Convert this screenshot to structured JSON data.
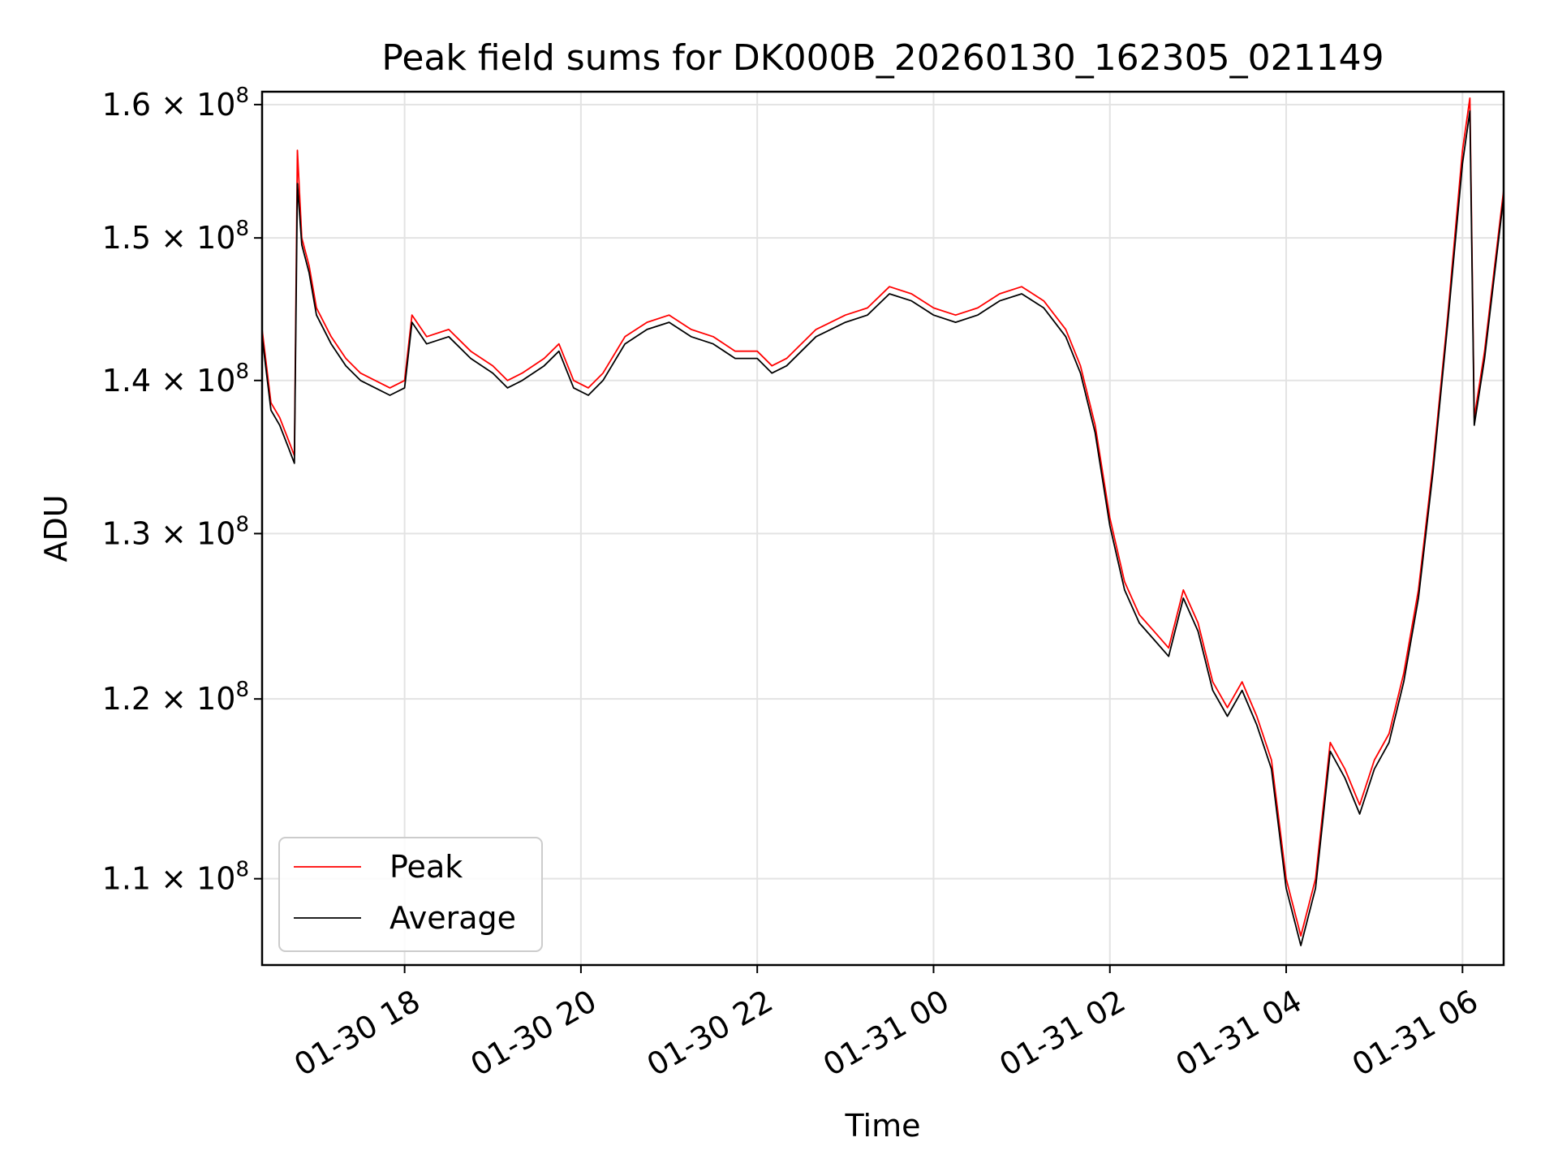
{
  "chart_data": {
    "type": "line",
    "title": "Peak field sums for DK000B_20260130_162305_021149",
    "xlabel": "Time",
    "ylabel": "ADU",
    "x_ticks": [
      "01-30 18",
      "01-30 20",
      "01-30 22",
      "01-31 00",
      "01-31 02",
      "01-31 04",
      "01-31 06"
    ],
    "y_ticks": [
      {
        "value": 110000000,
        "mantissa": "1.1",
        "base": "10",
        "exp": "8"
      },
      {
        "value": 120000000,
        "mantissa": "1.2",
        "base": "10",
        "exp": "8"
      },
      {
        "value": 130000000,
        "mantissa": "1.3",
        "base": "10",
        "exp": "8"
      },
      {
        "value": 140000000,
        "mantissa": "1.4",
        "base": "10",
        "exp": "8"
      },
      {
        "value": 150000000,
        "mantissa": "1.5",
        "base": "10",
        "exp": "8"
      },
      {
        "value": 160000000,
        "mantissa": "1.6",
        "base": "10",
        "exp": "8"
      }
    ],
    "x_range": [
      "2026-01-30 16:23",
      "2026-01-31 06:28"
    ],
    "ylim": [
      105500000,
      161000000
    ],
    "y_scale": "log",
    "grid": true,
    "legend_position": "lower-left",
    "series": [
      {
        "name": "Peak",
        "color": "#ff0000",
        "points": [
          [
            "2026-01-30 16:23",
            143500000
          ],
          [
            "2026-01-30 16:29",
            138500000
          ],
          [
            "2026-01-30 16:35",
            137500000
          ],
          [
            "2026-01-30 16:41",
            136000000
          ],
          [
            "2026-01-30 16:45",
            135000000
          ],
          [
            "2026-01-30 16:47",
            156500000
          ],
          [
            "2026-01-30 16:50",
            150000000
          ],
          [
            "2026-01-30 16:55",
            148000000
          ],
          [
            "2026-01-30 17:00",
            145000000
          ],
          [
            "2026-01-30 17:10",
            143000000
          ],
          [
            "2026-01-30 17:20",
            141500000
          ],
          [
            "2026-01-30 17:30",
            140500000
          ],
          [
            "2026-01-30 17:40",
            140000000
          ],
          [
            "2026-01-30 17:50",
            139500000
          ],
          [
            "2026-01-30 18:00",
            140000000
          ],
          [
            "2026-01-30 18:05",
            144500000
          ],
          [
            "2026-01-30 18:15",
            143000000
          ],
          [
            "2026-01-30 18:30",
            143500000
          ],
          [
            "2026-01-30 18:45",
            142000000
          ],
          [
            "2026-01-30 19:00",
            141000000
          ],
          [
            "2026-01-30 19:10",
            140000000
          ],
          [
            "2026-01-30 19:20",
            140500000
          ],
          [
            "2026-01-30 19:35",
            141500000
          ],
          [
            "2026-01-30 19:45",
            142500000
          ],
          [
            "2026-01-30 19:55",
            140000000
          ],
          [
            "2026-01-30 20:05",
            139500000
          ],
          [
            "2026-01-30 20:15",
            140500000
          ],
          [
            "2026-01-30 20:30",
            143000000
          ],
          [
            "2026-01-30 20:45",
            144000000
          ],
          [
            "2026-01-30 21:00",
            144500000
          ],
          [
            "2026-01-30 21:15",
            143500000
          ],
          [
            "2026-01-30 21:30",
            143000000
          ],
          [
            "2026-01-30 21:45",
            142000000
          ],
          [
            "2026-01-30 22:00",
            142000000
          ],
          [
            "2026-01-30 22:10",
            141000000
          ],
          [
            "2026-01-30 22:20",
            141500000
          ],
          [
            "2026-01-30 22:40",
            143500000
          ],
          [
            "2026-01-30 23:00",
            144500000
          ],
          [
            "2026-01-30 23:15",
            145000000
          ],
          [
            "2026-01-30 23:30",
            146500000
          ],
          [
            "2026-01-30 23:45",
            146000000
          ],
          [
            "2026-01-31 00:00",
            145000000
          ],
          [
            "2026-01-31 00:15",
            144500000
          ],
          [
            "2026-01-31 00:30",
            145000000
          ],
          [
            "2026-01-31 00:45",
            146000000
          ],
          [
            "2026-01-31 01:00",
            146500000
          ],
          [
            "2026-01-31 01:15",
            145500000
          ],
          [
            "2026-01-31 01:30",
            143500000
          ],
          [
            "2026-01-31 01:40",
            141000000
          ],
          [
            "2026-01-31 01:50",
            137000000
          ],
          [
            "2026-01-31 02:00",
            131000000
          ],
          [
            "2026-01-31 02:10",
            127000000
          ],
          [
            "2026-01-31 02:20",
            125000000
          ],
          [
            "2026-01-31 02:30",
            124000000
          ],
          [
            "2026-01-31 02:40",
            123000000
          ],
          [
            "2026-01-31 02:50",
            126500000
          ],
          [
            "2026-01-31 03:00",
            124500000
          ],
          [
            "2026-01-31 03:10",
            121000000
          ],
          [
            "2026-01-31 03:20",
            119500000
          ],
          [
            "2026-01-31 03:30",
            121000000
          ],
          [
            "2026-01-31 03:40",
            119000000
          ],
          [
            "2026-01-31 03:50",
            116500000
          ],
          [
            "2026-01-31 04:00",
            110000000
          ],
          [
            "2026-01-31 04:10",
            107000000
          ],
          [
            "2026-01-31 04:20",
            110000000
          ],
          [
            "2026-01-31 04:30",
            117500000
          ],
          [
            "2026-01-31 04:40",
            116000000
          ],
          [
            "2026-01-31 04:50",
            114000000
          ],
          [
            "2026-01-31 05:00",
            116500000
          ],
          [
            "2026-01-31 05:10",
            118000000
          ],
          [
            "2026-01-31 05:20",
            121500000
          ],
          [
            "2026-01-31 05:30",
            126500000
          ],
          [
            "2026-01-31 05:40",
            134500000
          ],
          [
            "2026-01-31 05:50",
            144500000
          ],
          [
            "2026-01-31 06:00",
            156500000
          ],
          [
            "2026-01-31 06:05",
            160500000
          ],
          [
            "2026-01-31 06:08",
            137500000
          ],
          [
            "2026-01-31 06:15",
            142000000
          ],
          [
            "2026-01-31 06:28",
            153500000
          ]
        ]
      },
      {
        "name": "Average",
        "color": "#000000",
        "points": [
          [
            "2026-01-30 16:23",
            143000000
          ],
          [
            "2026-01-30 16:29",
            138000000
          ],
          [
            "2026-01-30 16:35",
            137000000
          ],
          [
            "2026-01-30 16:41",
            135500000
          ],
          [
            "2026-01-30 16:45",
            134500000
          ],
          [
            "2026-01-30 16:47",
            154000000
          ],
          [
            "2026-01-30 16:50",
            149500000
          ],
          [
            "2026-01-30 16:55",
            147500000
          ],
          [
            "2026-01-30 17:00",
            144500000
          ],
          [
            "2026-01-30 17:10",
            142500000
          ],
          [
            "2026-01-30 17:20",
            141000000
          ],
          [
            "2026-01-30 17:30",
            140000000
          ],
          [
            "2026-01-30 17:40",
            139500000
          ],
          [
            "2026-01-30 17:50",
            139000000
          ],
          [
            "2026-01-30 18:00",
            139500000
          ],
          [
            "2026-01-30 18:05",
            144000000
          ],
          [
            "2026-01-30 18:15",
            142500000
          ],
          [
            "2026-01-30 18:30",
            143000000
          ],
          [
            "2026-01-30 18:45",
            141500000
          ],
          [
            "2026-01-30 19:00",
            140500000
          ],
          [
            "2026-01-30 19:10",
            139500000
          ],
          [
            "2026-01-30 19:20",
            140000000
          ],
          [
            "2026-01-30 19:35",
            141000000
          ],
          [
            "2026-01-30 19:45",
            142000000
          ],
          [
            "2026-01-30 19:55",
            139500000
          ],
          [
            "2026-01-30 20:05",
            139000000
          ],
          [
            "2026-01-30 20:15",
            140000000
          ],
          [
            "2026-01-30 20:30",
            142500000
          ],
          [
            "2026-01-30 20:45",
            143500000
          ],
          [
            "2026-01-30 21:00",
            144000000
          ],
          [
            "2026-01-30 21:15",
            143000000
          ],
          [
            "2026-01-30 21:30",
            142500000
          ],
          [
            "2026-01-30 21:45",
            141500000
          ],
          [
            "2026-01-30 22:00",
            141500000
          ],
          [
            "2026-01-30 22:10",
            140500000
          ],
          [
            "2026-01-30 22:20",
            141000000
          ],
          [
            "2026-01-30 22:40",
            143000000
          ],
          [
            "2026-01-30 23:00",
            144000000
          ],
          [
            "2026-01-30 23:15",
            144500000
          ],
          [
            "2026-01-30 23:30",
            146000000
          ],
          [
            "2026-01-30 23:45",
            145500000
          ],
          [
            "2026-01-31 00:00",
            144500000
          ],
          [
            "2026-01-31 00:15",
            144000000
          ],
          [
            "2026-01-31 00:30",
            144500000
          ],
          [
            "2026-01-31 00:45",
            145500000
          ],
          [
            "2026-01-31 01:00",
            146000000
          ],
          [
            "2026-01-31 01:15",
            145000000
          ],
          [
            "2026-01-31 01:30",
            143000000
          ],
          [
            "2026-01-31 01:40",
            140500000
          ],
          [
            "2026-01-31 01:50",
            136500000
          ],
          [
            "2026-01-31 02:00",
            130500000
          ],
          [
            "2026-01-31 02:10",
            126500000
          ],
          [
            "2026-01-31 02:20",
            124500000
          ],
          [
            "2026-01-31 02:30",
            123500000
          ],
          [
            "2026-01-31 02:40",
            122500000
          ],
          [
            "2026-01-31 02:50",
            126000000
          ],
          [
            "2026-01-31 03:00",
            124000000
          ],
          [
            "2026-01-31 03:10",
            120500000
          ],
          [
            "2026-01-31 03:20",
            119000000
          ],
          [
            "2026-01-31 03:30",
            120500000
          ],
          [
            "2026-01-31 03:40",
            118500000
          ],
          [
            "2026-01-31 03:50",
            116000000
          ],
          [
            "2026-01-31 04:00",
            109500000
          ],
          [
            "2026-01-31 04:10",
            106500000
          ],
          [
            "2026-01-31 04:20",
            109500000
          ],
          [
            "2026-01-31 04:30",
            117000000
          ],
          [
            "2026-01-31 04:40",
            115500000
          ],
          [
            "2026-01-31 04:50",
            113500000
          ],
          [
            "2026-01-31 05:00",
            116000000
          ],
          [
            "2026-01-31 05:10",
            117500000
          ],
          [
            "2026-01-31 05:20",
            121000000
          ],
          [
            "2026-01-31 05:30",
            126000000
          ],
          [
            "2026-01-31 05:40",
            134000000
          ],
          [
            "2026-01-31 05:50",
            144000000
          ],
          [
            "2026-01-31 06:00",
            155500000
          ],
          [
            "2026-01-31 06:05",
            159500000
          ],
          [
            "2026-01-31 06:08",
            137000000
          ],
          [
            "2026-01-31 06:15",
            141500000
          ],
          [
            "2026-01-31 06:28",
            153000000
          ]
        ]
      }
    ]
  }
}
